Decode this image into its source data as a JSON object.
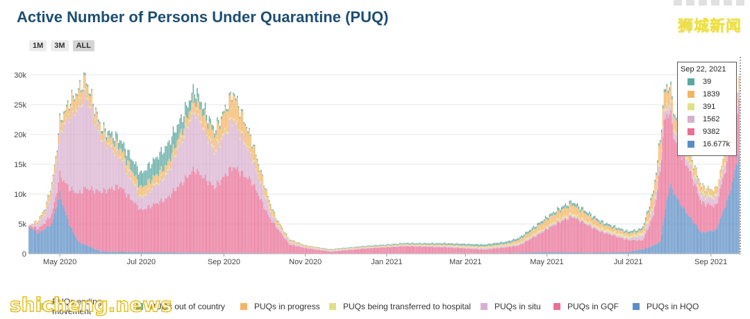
{
  "chart_data": {
    "type": "bar",
    "stacked": true,
    "title": "Active Number of Persons Under Quarantine (PUQ)",
    "xlabel": "",
    "ylabel": "",
    "ylim": [
      0,
      33000
    ],
    "y_ticks": [
      0,
      5000,
      10000,
      15000,
      20000,
      25000,
      30000
    ],
    "y_tick_labels": [
      "0",
      "5k",
      "10k",
      "15k",
      "20k",
      "25k",
      "30k"
    ],
    "x_tick_labels": [
      "May 2020",
      "Jul 2020",
      "Sep 2020",
      "Nov 2020",
      "Jan 2021",
      "Mar 2021",
      "May 2021",
      "Jul 2021",
      "Sep 2021"
    ],
    "x_tick_dates": [
      "2020-05-01",
      "2020-07-01",
      "2020-09-01",
      "2020-11-01",
      "2021-01-01",
      "2021-03-01",
      "2021-05-01",
      "2021-07-01",
      "2021-09-01"
    ],
    "x_range": [
      "2020-04-08",
      "2021-09-23"
    ],
    "grid": true,
    "legend_position": "bottom",
    "series_order_bottom_to_top": [
      "PUQs in HQO",
      "PUQs in GQF",
      "PUQs in situ",
      "PUQs being transferred to hospital",
      "PUQs in progress",
      "PUQs out of country",
      "PUQs ending movement"
    ],
    "series": [
      {
        "name": "PUQs ending movement",
        "color": "#c4dd9c",
        "points": [
          [
            "2020-04-08",
            0
          ],
          [
            "2021-09-22",
            0
          ]
        ]
      },
      {
        "name": "PUQs out of country",
        "color": "#5aa8a0",
        "points": [
          [
            "2020-04-08",
            0
          ],
          [
            "2020-05-01",
            300
          ],
          [
            "2020-06-01",
            400
          ],
          [
            "2020-07-01",
            2400
          ],
          [
            "2020-07-20",
            3200
          ],
          [
            "2020-08-10",
            1500
          ],
          [
            "2020-09-01",
            400
          ],
          [
            "2020-10-01",
            200
          ],
          [
            "2020-11-01",
            50
          ],
          [
            "2021-05-01",
            400
          ],
          [
            "2021-05-20",
            500
          ],
          [
            "2021-07-01",
            300
          ],
          [
            "2021-08-01",
            500
          ],
          [
            "2021-09-01",
            100
          ],
          [
            "2021-09-22",
            39
          ]
        ]
      },
      {
        "name": "PUQs in progress",
        "color": "#f4b563",
        "points": [
          [
            "2020-04-08",
            0
          ],
          [
            "2020-05-01",
            1500
          ],
          [
            "2020-05-15",
            2500
          ],
          [
            "2020-06-01",
            1200
          ],
          [
            "2020-07-01",
            1500
          ],
          [
            "2020-08-01",
            1200
          ],
          [
            "2020-08-25",
            2600
          ],
          [
            "2020-09-08",
            4000
          ],
          [
            "2020-09-22",
            2500
          ],
          [
            "2020-10-05",
            1000
          ],
          [
            "2020-10-20",
            300
          ],
          [
            "2020-11-15",
            100
          ],
          [
            "2021-02-01",
            100
          ],
          [
            "2021-04-01",
            200
          ],
          [
            "2021-05-01",
            1200
          ],
          [
            "2021-05-20",
            1500
          ],
          [
            "2021-06-15",
            700
          ],
          [
            "2021-07-10",
            400
          ],
          [
            "2021-07-25",
            3000
          ],
          [
            "2021-08-15",
            1500
          ],
          [
            "2021-09-01",
            900
          ],
          [
            "2021-09-22",
            1839
          ]
        ]
      },
      {
        "name": "PUQs being transferred to hospital",
        "color": "#e0e08a",
        "points": [
          [
            "2020-04-08",
            0
          ],
          [
            "2020-05-10",
            200
          ],
          [
            "2020-07-01",
            200
          ],
          [
            "2020-09-01",
            300
          ],
          [
            "2020-11-01",
            50
          ],
          [
            "2021-05-01",
            200
          ],
          [
            "2021-07-25",
            400
          ],
          [
            "2021-09-22",
            391
          ]
        ]
      },
      {
        "name": "PUQs in situ",
        "color": "#d8b0cf",
        "points": [
          [
            "2020-04-08",
            0
          ],
          [
            "2020-04-20",
            1500
          ],
          [
            "2020-04-28",
            5000
          ],
          [
            "2020-05-08",
            12000
          ],
          [
            "2020-05-20",
            16000
          ],
          [
            "2020-06-01",
            9000
          ],
          [
            "2020-06-15",
            5000
          ],
          [
            "2020-07-01",
            2000
          ],
          [
            "2020-07-20",
            4000
          ],
          [
            "2020-08-10",
            10000
          ],
          [
            "2020-08-25",
            6000
          ],
          [
            "2020-09-08",
            8000
          ],
          [
            "2020-09-22",
            4000
          ],
          [
            "2020-10-10",
            500
          ],
          [
            "2020-11-01",
            200
          ],
          [
            "2021-01-01",
            100
          ],
          [
            "2021-05-01",
            300
          ],
          [
            "2021-07-01",
            300
          ],
          [
            "2021-07-25",
            1500
          ],
          [
            "2021-08-15",
            1000
          ],
          [
            "2021-09-22",
            1562
          ]
        ]
      },
      {
        "name": "PUQs in GQF",
        "color": "#e96f95",
        "points": [
          [
            "2020-04-08",
            300
          ],
          [
            "2020-04-20",
            1000
          ],
          [
            "2020-04-28",
            2000
          ],
          [
            "2020-05-08",
            6000
          ],
          [
            "2020-05-20",
            9500
          ],
          [
            "2020-06-01",
            10000
          ],
          [
            "2020-06-15",
            11000
          ],
          [
            "2020-07-01",
            7000
          ],
          [
            "2020-07-20",
            9000
          ],
          [
            "2020-08-10",
            14000
          ],
          [
            "2020-08-25",
            11000
          ],
          [
            "2020-09-08",
            14500
          ],
          [
            "2020-09-22",
            12000
          ],
          [
            "2020-10-05",
            6000
          ],
          [
            "2020-10-20",
            1500
          ],
          [
            "2020-11-01",
            900
          ],
          [
            "2020-11-20",
            300
          ],
          [
            "2020-12-15",
            800
          ],
          [
            "2021-01-15",
            1200
          ],
          [
            "2021-02-15",
            1000
          ],
          [
            "2021-03-15",
            600
          ],
          [
            "2021-04-10",
            1200
          ],
          [
            "2021-04-25",
            3000
          ],
          [
            "2021-05-10",
            5000
          ],
          [
            "2021-05-20",
            6000
          ],
          [
            "2021-06-10",
            3500
          ],
          [
            "2021-07-01",
            2000
          ],
          [
            "2021-07-12",
            1500
          ],
          [
            "2021-07-20",
            5000
          ],
          [
            "2021-07-28",
            16000
          ],
          [
            "2021-08-05",
            9000
          ],
          [
            "2021-08-15",
            8000
          ],
          [
            "2021-08-25",
            5000
          ],
          [
            "2021-09-05",
            4000
          ],
          [
            "2021-09-15",
            7000
          ],
          [
            "2021-09-22",
            9382
          ]
        ]
      },
      {
        "name": "PUQs in HQO",
        "color": "#5b8ec5",
        "points": [
          [
            "2020-04-08",
            4500
          ],
          [
            "2020-04-15",
            3500
          ],
          [
            "2020-04-25",
            5000
          ],
          [
            "2020-05-01",
            10000
          ],
          [
            "2020-05-08",
            5000
          ],
          [
            "2020-05-15",
            2000
          ],
          [
            "2020-06-01",
            400
          ],
          [
            "2020-07-01",
            300
          ],
          [
            "2020-08-01",
            200
          ],
          [
            "2020-11-01",
            50
          ],
          [
            "2021-04-01",
            100
          ],
          [
            "2021-05-01",
            300
          ],
          [
            "2021-06-01",
            200
          ],
          [
            "2021-07-01",
            300
          ],
          [
            "2021-07-15",
            900
          ],
          [
            "2021-07-25",
            2000
          ],
          [
            "2021-08-01",
            11500
          ],
          [
            "2021-08-10",
            8000
          ],
          [
            "2021-08-25",
            3500
          ],
          [
            "2021-09-05",
            4000
          ],
          [
            "2021-09-15",
            10000
          ],
          [
            "2021-09-22",
            16677
          ]
        ]
      }
    ]
  },
  "range_buttons": [
    {
      "label": "1M",
      "active": false
    },
    {
      "label": "3M",
      "active": false
    },
    {
      "label": "ALL",
      "active": true
    }
  ],
  "hover": {
    "date": "Sep 22, 2021",
    "rows": [
      {
        "value": "39",
        "color": "#5aa8a0"
      },
      {
        "value": "1839",
        "color": "#f4b563"
      },
      {
        "value": "391",
        "color": "#e0e08a"
      },
      {
        "value": "1562",
        "color": "#d8b0cf"
      },
      {
        "value": "9382",
        "color": "#e96f95"
      },
      {
        "value": "16.677k",
        "color": "#5b8ec5"
      }
    ]
  },
  "legend": [
    {
      "label": "PUQs ending movement",
      "color": "#c4dd9c"
    },
    {
      "label": "PUQs out of country",
      "color": "#5aa8a0"
    },
    {
      "label": "PUQs in progress",
      "color": "#f4b563"
    },
    {
      "label": "PUQs being transferred to hospital",
      "color": "#e0e08a"
    },
    {
      "label": "PUQs in situ",
      "color": "#d8b0cf"
    },
    {
      "label": "PUQs in GQF",
      "color": "#e96f95"
    },
    {
      "label": "PUQs in HQO",
      "color": "#5b8ec5"
    }
  ],
  "watermarks": {
    "top": "狮城新闻",
    "bottom": "shicheng.news"
  }
}
